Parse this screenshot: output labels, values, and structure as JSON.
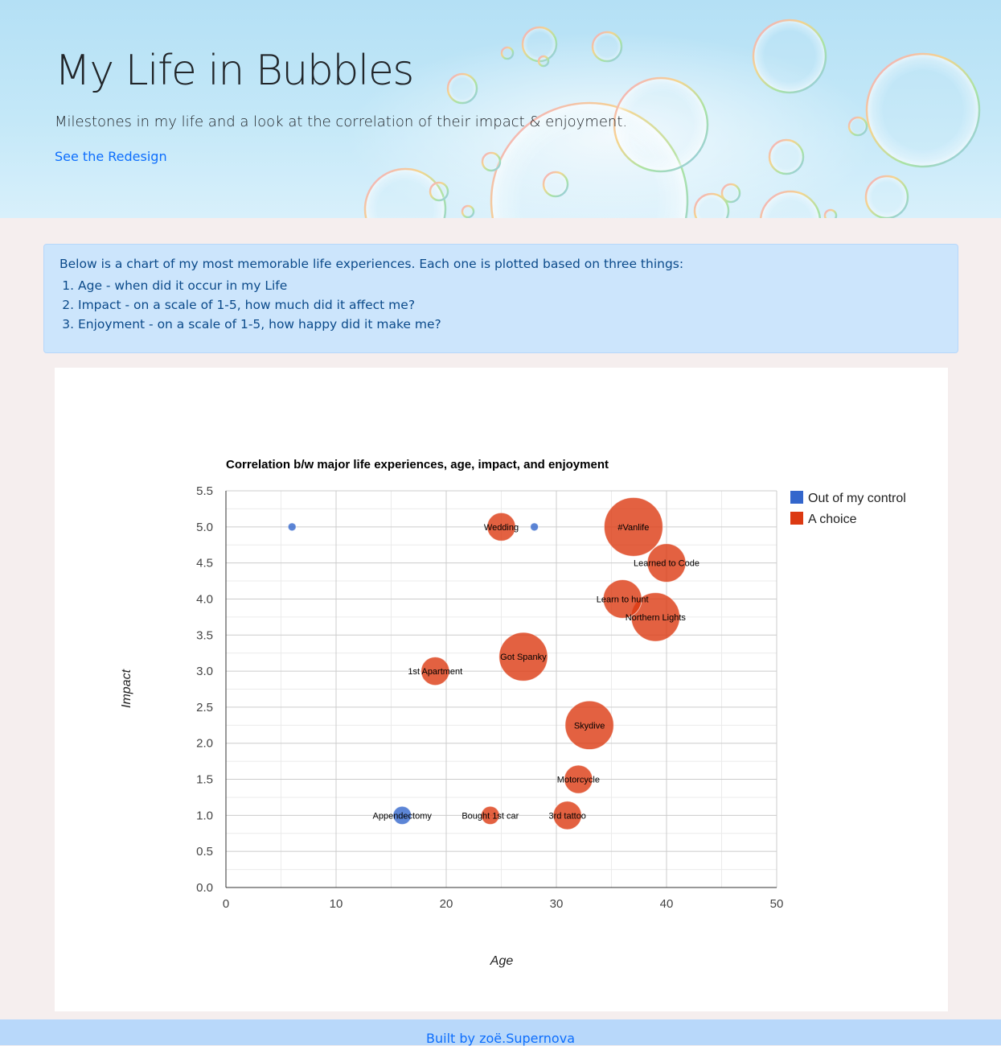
{
  "header": {
    "title": "My Life in Bubbles",
    "subtitle": "Milestones in my life and a look at the correlation of their impact & enjoyment.",
    "link_label": "See the Redesign"
  },
  "info": {
    "intro": "Below is a chart of my most memorable life experiences. Each one is plotted based on three things:",
    "items": [
      "Age - when did it occur in my Life",
      "Impact - on a scale of 1-5, how much did it affect me?",
      "Enjoyment - on a scale of 1-5, how happy did it make me?"
    ]
  },
  "chart_data": {
    "type": "scatter",
    "title": "Correlation b/w major life experiences, age, impact, and enjoyment",
    "xlabel": "Age",
    "ylabel": "Impact",
    "xlim": [
      0,
      50
    ],
    "ylim": [
      0,
      5.5
    ],
    "xticks": [
      "0",
      "10",
      "20",
      "30",
      "40",
      "50"
    ],
    "yticks": [
      "0.0",
      "0.5",
      "1.0",
      "1.5",
      "2.0",
      "2.5",
      "3.0",
      "3.5",
      "4.0",
      "4.5",
      "5.0",
      "5.5"
    ],
    "grid": true,
    "legend_position": "right",
    "series": [
      {
        "name": "Out of my control",
        "color": "#3366cc",
        "points": [
          {
            "label": "",
            "x": 6,
            "y": 5.0,
            "enjoyment": 0
          },
          {
            "label": "",
            "x": 28,
            "y": 5.0,
            "enjoyment": 0
          },
          {
            "label": "Appendectomy",
            "x": 16,
            "y": 1.0,
            "enjoyment": 1
          }
        ]
      },
      {
        "name": "A choice",
        "color": "#dc3912",
        "points": [
          {
            "label": "Wedding",
            "x": 25,
            "y": 5.0,
            "enjoyment": 2
          },
          {
            "label": "#Vanlife",
            "x": 37,
            "y": 5.0,
            "enjoyment": 5
          },
          {
            "label": "Learned to Code",
            "x": 40,
            "y": 4.5,
            "enjoyment": 3
          },
          {
            "label": "Learn to hunt",
            "x": 36,
            "y": 4.0,
            "enjoyment": 3
          },
          {
            "label": "Northern Lights",
            "x": 39,
            "y": 3.75,
            "enjoyment": 4
          },
          {
            "label": "Got Spanky",
            "x": 27,
            "y": 3.2,
            "enjoyment": 4
          },
          {
            "label": "1st Apartment",
            "x": 19,
            "y": 3.0,
            "enjoyment": 2
          },
          {
            "label": "Skydive",
            "x": 33,
            "y": 2.25,
            "enjoyment": 4
          },
          {
            "label": "Motorcycle",
            "x": 32,
            "y": 1.5,
            "enjoyment": 2
          },
          {
            "label": "Bought 1st car",
            "x": 24,
            "y": 1.0,
            "enjoyment": 1
          },
          {
            "label": "3rd tattoo",
            "x": 31,
            "y": 1.0,
            "enjoyment": 2
          }
        ]
      }
    ]
  },
  "footer": {
    "text": "Built by zoë.Supernova"
  }
}
